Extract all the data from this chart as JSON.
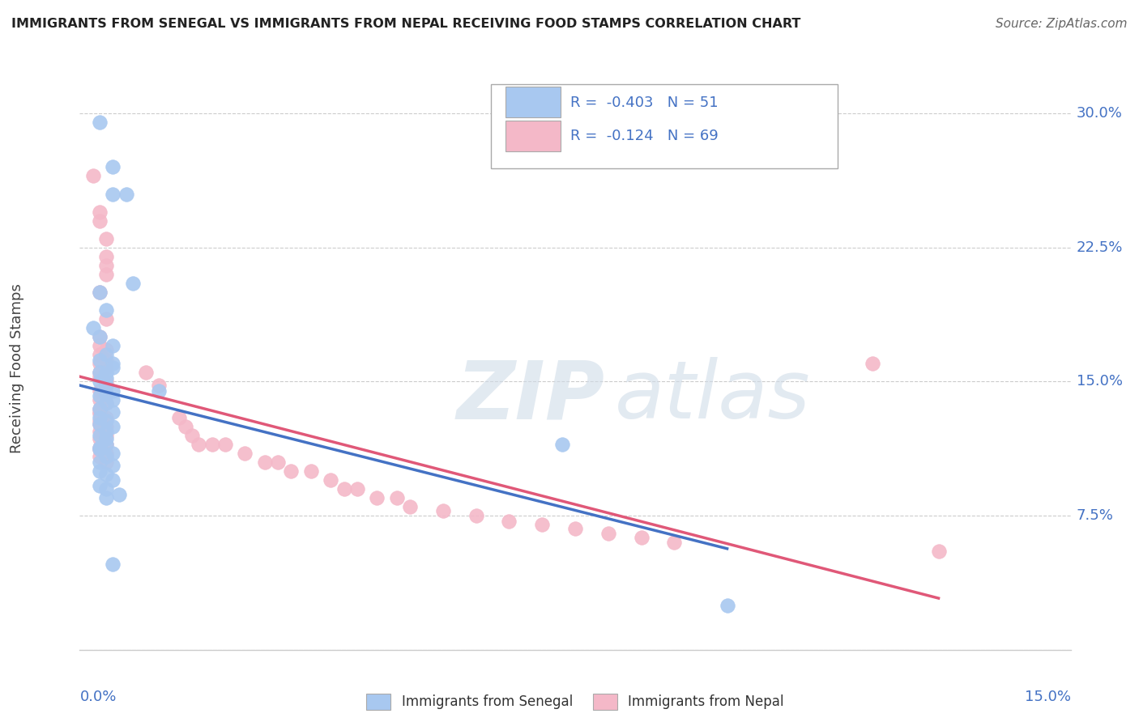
{
  "title": "IMMIGRANTS FROM SENEGAL VS IMMIGRANTS FROM NEPAL RECEIVING FOOD STAMPS CORRELATION CHART",
  "source": "Source: ZipAtlas.com",
  "ylabel": "Receiving Food Stamps",
  "yticks": [
    0.0,
    0.075,
    0.15,
    0.225,
    0.3
  ],
  "ytick_labels": [
    "",
    "7.5%",
    "15.0%",
    "22.5%",
    "30.0%"
  ],
  "xlim": [
    0.0,
    0.15
  ],
  "ylim": [
    0.0,
    0.315
  ],
  "senegal_R": -0.403,
  "senegal_N": 51,
  "nepal_R": -0.124,
  "nepal_N": 69,
  "senegal_color": "#a8c8f0",
  "nepal_color": "#f4b8c8",
  "senegal_line_color": "#4472c4",
  "nepal_line_color": "#e05878",
  "senegal_points_x": [
    0.003,
    0.005,
    0.005,
    0.007,
    0.008,
    0.003,
    0.004,
    0.002,
    0.003,
    0.005,
    0.004,
    0.003,
    0.005,
    0.005,
    0.004,
    0.003,
    0.004,
    0.003,
    0.004,
    0.005,
    0.004,
    0.003,
    0.005,
    0.004,
    0.003,
    0.005,
    0.003,
    0.004,
    0.003,
    0.005,
    0.004,
    0.003,
    0.004,
    0.012,
    0.004,
    0.003,
    0.003,
    0.005,
    0.004,
    0.003,
    0.005,
    0.003,
    0.004,
    0.005,
    0.003,
    0.004,
    0.006,
    0.004,
    0.005,
    0.073,
    0.098
  ],
  "senegal_points_y": [
    0.295,
    0.27,
    0.255,
    0.255,
    0.205,
    0.2,
    0.19,
    0.18,
    0.175,
    0.17,
    0.165,
    0.162,
    0.16,
    0.158,
    0.155,
    0.155,
    0.152,
    0.15,
    0.148,
    0.145,
    0.143,
    0.142,
    0.14,
    0.138,
    0.135,
    0.133,
    0.13,
    0.128,
    0.126,
    0.125,
    0.122,
    0.12,
    0.118,
    0.145,
    0.115,
    0.113,
    0.112,
    0.11,
    0.108,
    0.105,
    0.103,
    0.1,
    0.098,
    0.095,
    0.092,
    0.09,
    0.087,
    0.085,
    0.048,
    0.115,
    0.025
  ],
  "nepal_points_x": [
    0.002,
    0.003,
    0.003,
    0.004,
    0.004,
    0.004,
    0.004,
    0.003,
    0.004,
    0.003,
    0.003,
    0.004,
    0.003,
    0.004,
    0.003,
    0.004,
    0.003,
    0.003,
    0.004,
    0.004,
    0.003,
    0.004,
    0.003,
    0.004,
    0.003,
    0.003,
    0.003,
    0.004,
    0.003,
    0.003,
    0.004,
    0.003,
    0.004,
    0.003,
    0.004,
    0.003,
    0.003,
    0.004,
    0.003,
    0.004,
    0.01,
    0.012,
    0.015,
    0.016,
    0.017,
    0.018,
    0.02,
    0.022,
    0.025,
    0.028,
    0.03,
    0.032,
    0.035,
    0.038,
    0.04,
    0.042,
    0.045,
    0.048,
    0.05,
    0.055,
    0.06,
    0.065,
    0.07,
    0.075,
    0.08,
    0.085,
    0.09,
    0.12,
    0.13
  ],
  "nepal_points_y": [
    0.265,
    0.245,
    0.24,
    0.23,
    0.22,
    0.215,
    0.21,
    0.2,
    0.185,
    0.175,
    0.17,
    0.168,
    0.165,
    0.162,
    0.16,
    0.158,
    0.155,
    0.153,
    0.15,
    0.148,
    0.145,
    0.143,
    0.14,
    0.138,
    0.135,
    0.133,
    0.132,
    0.13,
    0.128,
    0.126,
    0.125,
    0.122,
    0.12,
    0.118,
    0.115,
    0.113,
    0.112,
    0.11,
    0.108,
    0.105,
    0.155,
    0.148,
    0.13,
    0.125,
    0.12,
    0.115,
    0.115,
    0.115,
    0.11,
    0.105,
    0.105,
    0.1,
    0.1,
    0.095,
    0.09,
    0.09,
    0.085,
    0.085,
    0.08,
    0.078,
    0.075,
    0.072,
    0.07,
    0.068,
    0.065,
    0.063,
    0.06,
    0.16,
    0.055
  ]
}
